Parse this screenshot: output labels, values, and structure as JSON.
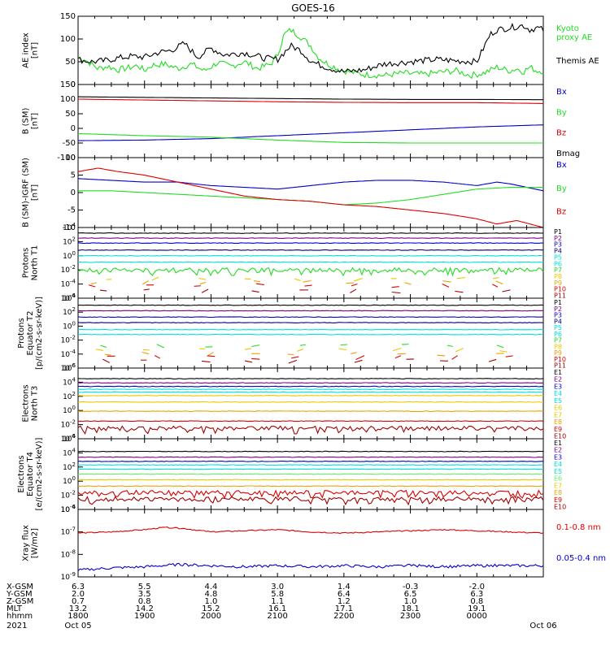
{
  "title": "GOES-16",
  "colors": {
    "black": "#000000",
    "green": "#22dd22",
    "blue": "#0000cc",
    "red": "#dd0000",
    "cyan": "#00e0e0",
    "yellow": "#e8c800",
    "orange": "#f0a000",
    "navy": "#00007f",
    "purple": "#7f0080",
    "lightgreen": "#66ee66",
    "darkred": "#a00000"
  },
  "footer": {
    "rows": [
      {
        "label": "X-GSM",
        "values": [
          "6.3",
          "5.5",
          "4.4",
          "3.0",
          "1.4",
          "-0.3",
          "-2.0"
        ]
      },
      {
        "label": "Y-GSM",
        "values": [
          "2.0",
          "3.5",
          "4.8",
          "5.8",
          "6.4",
          "6.5",
          "6.3"
        ]
      },
      {
        "label": "Z-GSM",
        "values": [
          "0.7",
          "0.8",
          "1.0",
          "1.1",
          "1.2",
          "1.0",
          "0.8"
        ]
      },
      {
        "label": "MLT",
        "values": [
          "13.2",
          "14.2",
          "15.2",
          "16.1",
          "17.1",
          "18.1",
          "19.1"
        ]
      },
      {
        "label": "hhmm",
        "values": [
          "1800",
          "1900",
          "2000",
          "2100",
          "2200",
          "2300",
          "0000"
        ]
      }
    ],
    "year": "2021",
    "start_date": "Oct 05",
    "end_date": "Oct 06"
  },
  "chart_data": [
    {
      "type": "line",
      "id": "ae",
      "ylabel": [
        "AE index",
        "[nT]"
      ],
      "ylim": [
        0,
        150
      ],
      "yticks": [
        "0",
        "50",
        "100",
        "150"
      ],
      "ytick_values": [
        0,
        50,
        100,
        150
      ],
      "x": [
        "1800",
        "1900",
        "2000",
        "2100",
        "2200",
        "2300",
        "0000"
      ],
      "series": [
        {
          "name": "Kyoto proxy AE",
          "legend_lines": [
            "Kyoto",
            "proxy AE"
          ],
          "color": "green",
          "x": [
            0,
            0.1,
            0.2,
            0.3,
            0.45,
            0.6,
            0.8,
            0.9,
            1.0,
            1.1,
            1.3,
            1.5,
            1.7,
            1.9,
            2.1,
            2.3,
            2.5,
            2.7,
            2.9,
            3.0,
            3.1,
            3.2,
            3.35,
            3.5,
            3.6,
            3.7,
            3.8,
            4.0,
            4.3,
            4.6,
            4.9,
            5.2,
            5.5,
            5.7,
            5.9,
            6.1,
            6.3,
            6.5,
            6.6,
            6.7,
            6.8,
            6.9,
            7.0
          ],
          "values": [
            60,
            55,
            45,
            35,
            40,
            32,
            38,
            42,
            30,
            42,
            45,
            35,
            45,
            30,
            48,
            40,
            50,
            35,
            45,
            65,
            110,
            120,
            105,
            85,
            62,
            50,
            42,
            30,
            22,
            20,
            25,
            22,
            28,
            30,
            20,
            25,
            38,
            30,
            35,
            28,
            38,
            30,
            30
          ]
        },
        {
          "name": "Themis AE",
          "legend_lines": [
            "Themis AE"
          ],
          "color": "black",
          "x": [
            0,
            0.2,
            0.4,
            0.6,
            0.8,
            1.0,
            1.2,
            1.4,
            1.6,
            1.8,
            2.0,
            2.2,
            2.5,
            2.8,
            3.0,
            3.1,
            3.2,
            3.35,
            3.5,
            3.6,
            3.7,
            3.8,
            4.0,
            4.3,
            4.6,
            5.0,
            5.4,
            5.7,
            6.0,
            6.1,
            6.2,
            6.3,
            6.5,
            6.7,
            6.8,
            6.9,
            7.0
          ],
          "values": [
            55,
            50,
            52,
            58,
            62,
            60,
            70,
            75,
            90,
            60,
            80,
            65,
            70,
            58,
            55,
            70,
            85,
            75,
            52,
            45,
            40,
            35,
            28,
            32,
            45,
            50,
            55,
            52,
            50,
            80,
            110,
            120,
            125,
            130,
            120,
            125,
            120
          ]
        }
      ]
    },
    {
      "type": "line",
      "id": "b_sm",
      "ylabel": [
        "B (SM)",
        "[nT]"
      ],
      "ylim": [
        -100,
        150
      ],
      "yticks": [
        "-100",
        "-50",
        "0",
        "50",
        "100",
        "150"
      ],
      "ytick_values": [
        -100,
        -50,
        0,
        50,
        100,
        150
      ],
      "series": [
        {
          "name": "Bx",
          "color": "blue",
          "x": [
            0,
            1,
            2,
            3,
            4,
            5,
            6,
            7
          ],
          "values": [
            -42,
            -40,
            -35,
            -25,
            -15,
            -5,
            5,
            12
          ]
        },
        {
          "name": "By",
          "color": "green",
          "x": [
            0,
            1,
            2,
            3,
            4,
            5,
            6,
            7
          ],
          "values": [
            -18,
            -25,
            -30,
            -40,
            -48,
            -50,
            -50,
            -50
          ]
        },
        {
          "name": "Bz",
          "color": "red",
          "x": [
            0,
            1,
            2,
            3,
            4,
            5,
            6,
            7
          ],
          "values": [
            100,
            97,
            94,
            91,
            89,
            88,
            88,
            85
          ]
        },
        {
          "name": "Bmag",
          "color": "black",
          "x": [
            0,
            1,
            2,
            3,
            4,
            5,
            6,
            7
          ],
          "values": [
            108,
            106,
            104,
            102,
            100,
            99,
            99,
            98
          ]
        }
      ]
    },
    {
      "type": "line",
      "id": "b_minus_igrf",
      "ylabel": [
        "B (SM)-IGRF (SM)",
        "[nT]"
      ],
      "ylim": [
        -10,
        10
      ],
      "yticks": [
        "-10",
        "-5",
        "0",
        "5",
        "10"
      ],
      "ytick_values": [
        -10,
        -5,
        0,
        5,
        10
      ],
      "series": [
        {
          "name": "Bx",
          "color": "blue",
          "x": [
            0,
            0.5,
            1,
            1.5,
            2,
            2.5,
            3,
            3.5,
            4,
            4.5,
            5,
            5.5,
            6,
            6.3,
            6.5,
            7
          ],
          "values": [
            4,
            3.5,
            3,
            3,
            2,
            1.5,
            1,
            2,
            3,
            3.5,
            3.5,
            3,
            2,
            3,
            2.5,
            0.5
          ]
        },
        {
          "name": "By",
          "color": "green",
          "x": [
            0,
            0.5,
            1,
            1.5,
            2,
            2.5,
            3,
            3.5,
            4,
            4.5,
            5,
            5.5,
            6,
            6.5,
            7
          ],
          "values": [
            0.5,
            0.5,
            0,
            -0.5,
            -1,
            -1.5,
            -2,
            -2.5,
            -3.5,
            -3,
            -2,
            -0.5,
            1,
            1.5,
            1.5
          ]
        },
        {
          "name": "Bz",
          "color": "red",
          "x": [
            0,
            0.3,
            0.6,
            1,
            1.5,
            2,
            2.5,
            3,
            3.5,
            4,
            4.5,
            5,
            5.5,
            6,
            6.3,
            6.6,
            6.8,
            7
          ],
          "values": [
            6,
            7,
            6,
            5,
            3,
            1,
            -1,
            -2,
            -2.5,
            -3.5,
            -4,
            -5,
            -6,
            -7.5,
            -9,
            -8,
            -9,
            -10
          ]
        }
      ]
    },
    {
      "type": "line",
      "id": "protons_t1",
      "ylabel": [
        "Protons",
        "North T1"
      ],
      "log_scale": true,
      "ylim_exp": [
        -6,
        4
      ],
      "yticks": [
        "10^4",
        "10^2",
        "10^0",
        "10^-2",
        "10^-4",
        "10^-6"
      ],
      "ytick_exponents": [
        4,
        2,
        0,
        -2,
        -4,
        -6
      ],
      "channels": [
        "P1",
        "P2",
        "P3",
        "P4",
        "P5",
        "P6",
        "P7",
        "P8",
        "P9",
        "P10",
        "P11"
      ],
      "channel_colors": [
        "black",
        "purple",
        "blue",
        "navy",
        "cyan",
        "cyan",
        "green",
        "yellow",
        "orange",
        "red",
        "darkred"
      ],
      "levels_exp": [
        3.2,
        2.5,
        1.8,
        0.8,
        0.0,
        -0.9,
        -2.0,
        -3.3,
        -3.8,
        -4.2,
        -5.0
      ]
    },
    {
      "type": "line",
      "id": "protons_t2",
      "ylabel": [
        "Protons",
        "Equator T2",
        "[p/(cm2-s-sr-keV)]"
      ],
      "log_scale": true,
      "ylim_exp": [
        -6,
        4
      ],
      "yticks": [
        "10^4",
        "10^2",
        "10^0",
        "10^-2",
        "10^-4",
        "10^-6"
      ],
      "ytick_exponents": [
        4,
        2,
        0,
        -2,
        -4,
        -6
      ],
      "channels": [
        "P1",
        "P2",
        "P3",
        "P4",
        "P5",
        "P6",
        "P7",
        "P8",
        "P9",
        "P10",
        "P11"
      ],
      "channel_colors": [
        "black",
        "purple",
        "blue",
        "navy",
        "cyan",
        "cyan",
        "green",
        "yellow",
        "orange",
        "red",
        "darkred"
      ],
      "levels_exp": [
        3.0,
        2.2,
        1.3,
        0.5,
        -0.5,
        -1.2,
        -2.8,
        -3.4,
        -4.0,
        -4.5,
        -5.0
      ]
    },
    {
      "type": "line",
      "id": "electrons_t3",
      "ylabel": [
        "Electrons",
        "North T3"
      ],
      "log_scale": true,
      "ylim_exp": [
        -4,
        6
      ],
      "yticks": [
        "10^6",
        "10^4",
        "10^2",
        "10^0",
        "10^-2",
        "10^-4"
      ],
      "ytick_exponents": [
        6,
        4,
        2,
        0,
        -2,
        -4
      ],
      "channels": [
        "E1",
        "E2",
        "E3",
        "E4",
        "E5",
        "E6",
        "E7",
        "E8",
        "E9",
        "E10"
      ],
      "channel_colors": [
        "black",
        "purple",
        "blue",
        "cyan",
        "cyan",
        "yellow",
        "yellow",
        "orange",
        "red",
        "darkred"
      ],
      "levels_exp": [
        4.5,
        3.9,
        3.4,
        3.0,
        2.6,
        2.1,
        1.2,
        -0.1,
        -1.5,
        -2.5
      ]
    },
    {
      "type": "line",
      "id": "electrons_t4",
      "ylabel": [
        "Electrons",
        "Equator T4",
        "[e/(cm2-s-sr-keV)]"
      ],
      "log_scale": true,
      "ylim_exp": [
        -4,
        6
      ],
      "yticks": [
        "10^6",
        "10^4",
        "10^2",
        "10^0",
        "10^-2",
        "10^-4"
      ],
      "ytick_exponents": [
        6,
        4,
        2,
        0,
        -2,
        -4
      ],
      "channels": [
        "E1",
        "E2",
        "E3",
        "E4",
        "E5",
        "E6",
        "E7",
        "E8",
        "E9",
        "E10"
      ],
      "channel_colors": [
        "black",
        "purple",
        "blue",
        "cyan",
        "cyan",
        "lightgreen",
        "yellow",
        "orange",
        "red",
        "darkred"
      ],
      "levels_exp": [
        4.2,
        3.4,
        2.8,
        2.3,
        1.7,
        1.0,
        0.2,
        -0.7,
        -1.6,
        -2.5
      ]
    },
    {
      "type": "line",
      "id": "xray",
      "ylabel": [
        "Xray flux",
        "[W/m2]"
      ],
      "log_scale": true,
      "ylim_exp": [
        -9,
        -6
      ],
      "yticks": [
        "10^-6",
        "10^-7",
        "10^-8",
        "10^-9"
      ],
      "ytick_exponents": [
        -6,
        -7,
        -8,
        -9
      ],
      "series": [
        {
          "name": "0.1-0.8 nm",
          "color": "red",
          "x": [
            0,
            0.5,
            1,
            1.3,
            1.6,
            2,
            2.5,
            3,
            3.5,
            4,
            4.5,
            5,
            5.5,
            6,
            6.5,
            7
          ],
          "values_exp": [
            -7.05,
            -7.0,
            -6.9,
            -6.8,
            -6.85,
            -7.0,
            -6.95,
            -6.9,
            -7.0,
            -7.05,
            -7.0,
            -6.95,
            -6.9,
            -6.95,
            -7.0,
            -7.05
          ]
        },
        {
          "name": "0.05-0.4 nm",
          "color": "blue",
          "x": [
            0,
            0.5,
            1,
            1.5,
            2,
            2.5,
            3,
            3.5,
            4,
            4.5,
            5,
            5.5,
            6,
            6.5,
            7
          ],
          "values_exp": [
            -8.7,
            -8.6,
            -8.55,
            -8.45,
            -8.5,
            -8.55,
            -8.5,
            -8.55,
            -8.5,
            -8.55,
            -8.5,
            -8.55,
            -8.5,
            -8.5,
            -8.5
          ]
        }
      ]
    }
  ]
}
